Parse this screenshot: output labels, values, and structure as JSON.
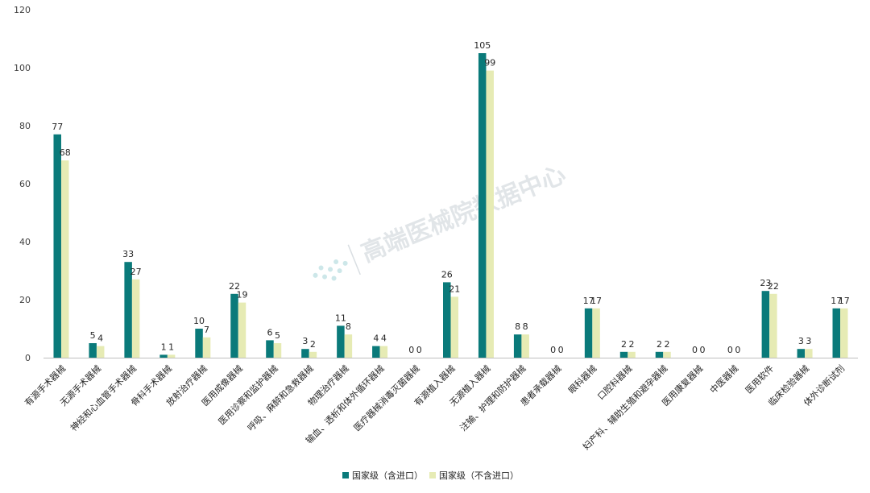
{
  "watermark": "高端医械院数据中心",
  "colors": {
    "series1": "#0a7a7a",
    "series2": "#e6ebb4",
    "axis": "#bfbfbf",
    "grid": "#f2f2f2"
  },
  "chart_data": {
    "type": "bar",
    "title": "",
    "xlabel": "",
    "ylabel": "",
    "ylim": [
      0,
      120
    ],
    "yticks": [
      0,
      20,
      40,
      60,
      80,
      100,
      120
    ],
    "grid": false,
    "legend_position": "bottom",
    "categories": [
      "有源手术器械",
      "无源手术器械",
      "神经和心血管手术器械",
      "骨科手术器械",
      "放射治疗器械",
      "医用成像器械",
      "医用诊察和监护器械",
      "呼吸、麻醉和急救器械",
      "物理治疗器械",
      "输血、透析和体外循环器械",
      "医疗器械消毒灭菌器械",
      "有源植入器械",
      "无源植入器械",
      "注输、护理和防护器械",
      "患者承载器械",
      "眼科器械",
      "口腔科器械",
      "妇产科、辅助生殖和避孕器械",
      "医用康复器械",
      "中医器械",
      "医用软件",
      "临床检验器械",
      "体外诊断试剂"
    ],
    "series": [
      {
        "name": "国家级（含进口）",
        "values": [
          77,
          5,
          33,
          1,
          10,
          22,
          6,
          3,
          11,
          4,
          0,
          26,
          105,
          8,
          0,
          17,
          2,
          2,
          0,
          0,
          23,
          3,
          17
        ]
      },
      {
        "name": "国家级（不含进口）",
        "values": [
          68,
          4,
          27,
          1,
          7,
          19,
          5,
          2,
          8,
          4,
          0,
          21,
          99,
          8,
          0,
          17,
          2,
          2,
          0,
          0,
          22,
          3,
          17
        ]
      }
    ]
  }
}
